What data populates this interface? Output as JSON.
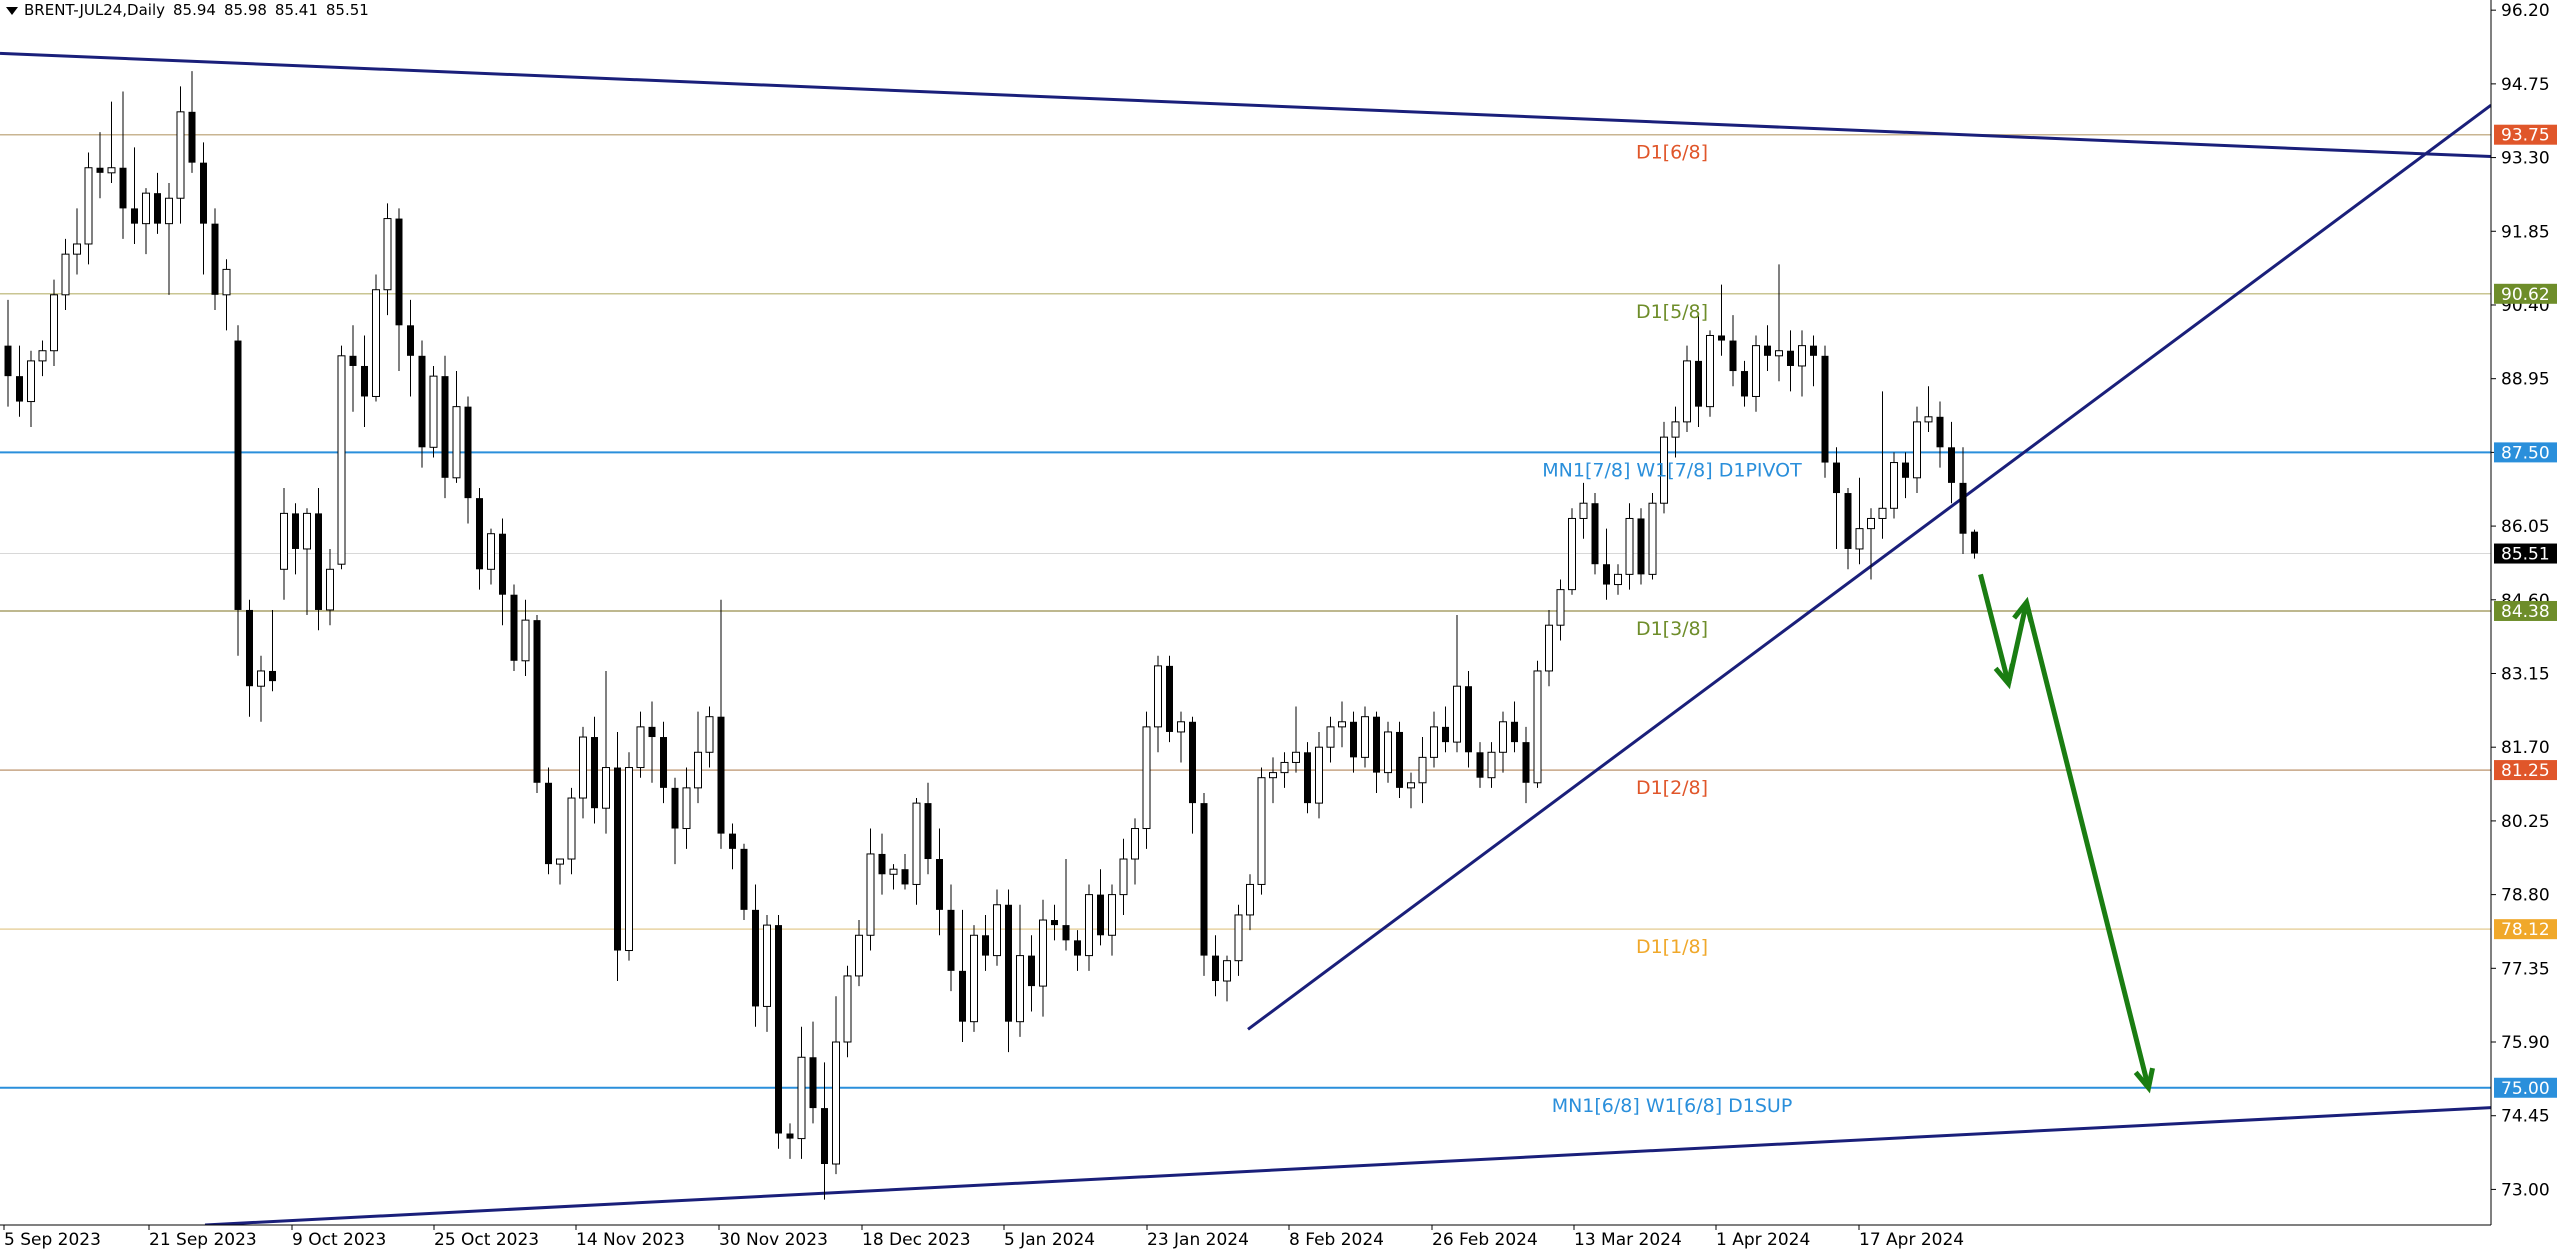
{
  "header": {
    "symbol": "BRENT-JUL24,Daily",
    "open": "85.94",
    "high": "85.98",
    "low": "85.41",
    "close": "85.51"
  },
  "chart_data": {
    "type": "candlestick",
    "symbol": "BRENT-JUL24",
    "timeframe": "Daily",
    "ylim": [
      72.3,
      96.4
    ],
    "y_ticks": [
      "96.20",
      "94.75",
      "93.30",
      "91.85",
      "90.40",
      "88.95",
      "87.50",
      "86.05",
      "84.60",
      "83.15",
      "81.70",
      "80.25",
      "78.80",
      "77.35",
      "75.90",
      "74.45",
      "73.00"
    ],
    "x_ticks": [
      "5 Sep 2023",
      "21 Sep 2023",
      "9 Oct 2023",
      "25 Oct 2023",
      "14 Nov 2023",
      "30 Nov 2023",
      "18 Dec 2023",
      "5 Jan 2024",
      "23 Jan 2024",
      "8 Feb 2024",
      "26 Feb 2024",
      "13 Mar 2024",
      "1 Apr 2024",
      "17 Apr 2024"
    ],
    "bars": [
      [
        89.6,
        90.5,
        88.4,
        89.0
      ],
      [
        89.0,
        89.6,
        88.2,
        88.5
      ],
      [
        88.5,
        89.5,
        88.0,
        89.3
      ],
      [
        89.3,
        89.7,
        89.0,
        89.5
      ],
      [
        89.5,
        90.9,
        89.2,
        90.6
      ],
      [
        90.6,
        91.7,
        90.3,
        91.4
      ],
      [
        91.4,
        92.3,
        91.0,
        91.6
      ],
      [
        91.6,
        93.4,
        91.2,
        93.1
      ],
      [
        93.1,
        93.8,
        92.5,
        93.0
      ],
      [
        93.0,
        94.4,
        92.8,
        93.1
      ],
      [
        93.1,
        94.6,
        91.7,
        92.3
      ],
      [
        92.3,
        93.5,
        91.6,
        92.0
      ],
      [
        92.0,
        92.7,
        91.4,
        92.6
      ],
      [
        92.6,
        93.0,
        91.8,
        92.0
      ],
      [
        92.0,
        92.8,
        90.6,
        92.5
      ],
      [
        92.5,
        94.7,
        92.0,
        94.2
      ],
      [
        94.2,
        95.0,
        93.0,
        93.2
      ],
      [
        93.2,
        93.6,
        91.0,
        92.0
      ],
      [
        92.0,
        92.3,
        90.3,
        90.6
      ],
      [
        90.6,
        91.3,
        89.9,
        91.1
      ],
      [
        89.7,
        90.0,
        83.5,
        84.4
      ],
      [
        84.4,
        84.6,
        82.3,
        82.9
      ],
      [
        82.9,
        83.5,
        82.2,
        83.2
      ],
      [
        83.2,
        84.4,
        82.8,
        83.0
      ],
      [
        85.2,
        86.8,
        84.6,
        86.3
      ],
      [
        86.3,
        86.5,
        85.1,
        85.6
      ],
      [
        85.6,
        86.4,
        84.3,
        86.3
      ],
      [
        86.3,
        86.8,
        84.0,
        84.4
      ],
      [
        84.4,
        85.6,
        84.1,
        85.2
      ],
      [
        85.3,
        89.6,
        85.2,
        89.4
      ],
      [
        89.4,
        90.0,
        88.3,
        89.2
      ],
      [
        89.2,
        89.8,
        88.0,
        88.6
      ],
      [
        88.6,
        91.0,
        88.5,
        90.7
      ],
      [
        90.7,
        92.4,
        90.2,
        92.1
      ],
      [
        92.1,
        92.3,
        89.1,
        90.0
      ],
      [
        90.0,
        90.5,
        88.6,
        89.4
      ],
      [
        89.4,
        89.7,
        87.2,
        87.6
      ],
      [
        87.6,
        89.2,
        87.4,
        89.0
      ],
      [
        89.0,
        89.4,
        86.6,
        87.0
      ],
      [
        87.0,
        89.1,
        86.9,
        88.4
      ],
      [
        88.4,
        88.6,
        86.1,
        86.6
      ],
      [
        86.6,
        86.8,
        84.8,
        85.2
      ],
      [
        85.2,
        86.0,
        84.9,
        85.9
      ],
      [
        85.9,
        86.2,
        84.1,
        84.7
      ],
      [
        84.7,
        84.9,
        83.2,
        83.4
      ],
      [
        83.4,
        84.6,
        83.1,
        84.2
      ],
      [
        84.2,
        84.3,
        80.8,
        81.0
      ],
      [
        81.0,
        81.3,
        79.2,
        79.4
      ],
      [
        79.4,
        79.5,
        79.0,
        79.5
      ],
      [
        79.5,
        80.9,
        79.2,
        80.7
      ],
      [
        80.7,
        82.1,
        80.3,
        81.9
      ],
      [
        81.9,
        82.3,
        80.2,
        80.5
      ],
      [
        80.5,
        83.2,
        80.0,
        81.3
      ],
      [
        81.3,
        82.0,
        77.1,
        77.7
      ],
      [
        77.7,
        81.6,
        77.5,
        81.3
      ],
      [
        81.3,
        82.4,
        81.1,
        82.1
      ],
      [
        82.1,
        82.6,
        81.0,
        81.9
      ],
      [
        81.9,
        82.2,
        80.6,
        80.9
      ],
      [
        80.9,
        81.1,
        79.4,
        80.1
      ],
      [
        80.1,
        81.3,
        79.7,
        80.9
      ],
      [
        80.9,
        82.4,
        80.6,
        81.6
      ],
      [
        81.6,
        82.5,
        81.3,
        82.3
      ],
      [
        82.3,
        84.6,
        79.7,
        80.0
      ],
      [
        80.0,
        80.2,
        79.3,
        79.7
      ],
      [
        79.7,
        79.8,
        78.3,
        78.5
      ],
      [
        78.5,
        79.0,
        76.2,
        76.6
      ],
      [
        76.6,
        78.4,
        76.1,
        78.2
      ],
      [
        78.2,
        78.4,
        73.8,
        74.1
      ],
      [
        74.1,
        74.3,
        73.6,
        74.0
      ],
      [
        74.0,
        76.2,
        73.6,
        75.6
      ],
      [
        75.6,
        76.3,
        74.3,
        74.6
      ],
      [
        74.6,
        75.5,
        72.8,
        73.5
      ],
      [
        73.5,
        76.8,
        73.3,
        75.9
      ],
      [
        75.9,
        77.4,
        75.6,
        77.2
      ],
      [
        77.2,
        78.3,
        77.0,
        78.0
      ],
      [
        78.0,
        80.1,
        77.7,
        79.6
      ],
      [
        79.6,
        80.0,
        78.8,
        79.2
      ],
      [
        79.2,
        79.4,
        78.9,
        79.3
      ],
      [
        79.3,
        79.6,
        78.9,
        79.0
      ],
      [
        79.0,
        80.7,
        78.6,
        80.6
      ],
      [
        80.6,
        81.0,
        79.2,
        79.5
      ],
      [
        79.5,
        80.1,
        78.0,
        78.5
      ],
      [
        78.5,
        79.0,
        76.9,
        77.3
      ],
      [
        77.3,
        78.5,
        75.9,
        76.3
      ],
      [
        76.3,
        78.2,
        76.1,
        78.0
      ],
      [
        78.0,
        78.4,
        77.3,
        77.6
      ],
      [
        77.6,
        78.9,
        77.4,
        78.6
      ],
      [
        78.6,
        78.9,
        75.7,
        76.3
      ],
      [
        76.3,
        78.6,
        76.0,
        77.6
      ],
      [
        77.6,
        78.0,
        76.5,
        77.0
      ],
      [
        77.0,
        78.7,
        76.4,
        78.3
      ],
      [
        78.3,
        78.6,
        77.9,
        78.2
      ],
      [
        78.2,
        79.5,
        77.7,
        77.9
      ],
      [
        77.9,
        78.1,
        77.3,
        77.6
      ],
      [
        77.6,
        79.0,
        77.3,
        78.8
      ],
      [
        78.8,
        79.3,
        77.8,
        78.0
      ],
      [
        78.0,
        79.0,
        77.6,
        78.8
      ],
      [
        78.8,
        79.9,
        78.4,
        79.5
      ],
      [
        79.5,
        80.3,
        79.0,
        80.1
      ],
      [
        80.1,
        82.4,
        79.7,
        82.1
      ],
      [
        82.1,
        83.5,
        81.6,
        83.3
      ],
      [
        83.3,
        83.5,
        81.8,
        82.0
      ],
      [
        82.0,
        82.4,
        81.4,
        82.2
      ],
      [
        82.2,
        82.3,
        80.0,
        80.6
      ],
      [
        80.6,
        80.8,
        77.2,
        77.6
      ],
      [
        77.6,
        78.0,
        76.8,
        77.1
      ],
      [
        77.1,
        77.6,
        76.7,
        77.5
      ],
      [
        77.5,
        78.6,
        77.2,
        78.4
      ],
      [
        78.4,
        79.2,
        78.1,
        79.0
      ],
      [
        79.0,
        81.3,
        78.8,
        81.1
      ],
      [
        81.1,
        81.5,
        80.6,
        81.2
      ],
      [
        81.2,
        81.6,
        80.9,
        81.4
      ],
      [
        81.4,
        82.5,
        81.2,
        81.6
      ],
      [
        81.6,
        81.8,
        80.4,
        80.6
      ],
      [
        80.6,
        82.0,
        80.3,
        81.7
      ],
      [
        81.7,
        82.3,
        81.4,
        82.1
      ],
      [
        82.1,
        82.6,
        81.7,
        82.2
      ],
      [
        82.2,
        82.4,
        81.2,
        81.5
      ],
      [
        81.5,
        82.5,
        81.3,
        82.3
      ],
      [
        82.3,
        82.4,
        80.8,
        81.2
      ],
      [
        81.2,
        82.2,
        81.0,
        82.0
      ],
      [
        82.0,
        82.2,
        80.7,
        80.9
      ],
      [
        80.9,
        81.2,
        80.5,
        81.0
      ],
      [
        81.0,
        81.9,
        80.6,
        81.5
      ],
      [
        81.5,
        82.4,
        81.3,
        82.1
      ],
      [
        82.1,
        82.5,
        81.6,
        81.8
      ],
      [
        81.8,
        84.3,
        81.6,
        82.9
      ],
      [
        82.9,
        83.2,
        81.3,
        81.6
      ],
      [
        81.6,
        81.8,
        80.9,
        81.1
      ],
      [
        81.1,
        81.8,
        80.9,
        81.6
      ],
      [
        81.6,
        82.4,
        81.2,
        82.2
      ],
      [
        82.2,
        82.6,
        81.6,
        81.8
      ],
      [
        81.8,
        82.1,
        80.6,
        81.0
      ],
      [
        81.0,
        83.4,
        80.9,
        83.2
      ],
      [
        83.2,
        84.4,
        82.9,
        84.1
      ],
      [
        84.1,
        85.0,
        83.8,
        84.8
      ],
      [
        84.8,
        86.4,
        84.7,
        86.2
      ],
      [
        86.2,
        86.9,
        85.8,
        86.5
      ],
      [
        86.5,
        86.7,
        85.1,
        85.3
      ],
      [
        85.3,
        86.0,
        84.6,
        84.9
      ],
      [
        84.9,
        85.3,
        84.7,
        85.1
      ],
      [
        85.1,
        86.5,
        84.8,
        86.2
      ],
      [
        86.2,
        86.4,
        84.9,
        85.1
      ],
      [
        85.1,
        86.7,
        85.0,
        86.5
      ],
      [
        86.5,
        88.1,
        86.3,
        87.8
      ],
      [
        87.8,
        88.4,
        87.4,
        88.1
      ],
      [
        88.1,
        89.6,
        87.9,
        89.3
      ],
      [
        89.3,
        90.2,
        88.0,
        88.4
      ],
      [
        88.4,
        89.9,
        88.2,
        89.8
      ],
      [
        89.8,
        90.8,
        89.4,
        89.7
      ],
      [
        89.7,
        90.2,
        88.8,
        89.1
      ],
      [
        89.1,
        89.3,
        88.4,
        88.6
      ],
      [
        88.6,
        89.8,
        88.3,
        89.6
      ],
      [
        89.6,
        90.0,
        89.1,
        89.4
      ],
      [
        89.4,
        91.2,
        88.9,
        89.5
      ],
      [
        89.5,
        89.9,
        88.7,
        89.2
      ],
      [
        89.2,
        89.9,
        88.6,
        89.6
      ],
      [
        89.6,
        89.8,
        88.8,
        89.4
      ],
      [
        89.4,
        89.6,
        87.0,
        87.3
      ],
      [
        87.3,
        87.6,
        85.6,
        86.7
      ],
      [
        86.7,
        86.8,
        85.2,
        85.6
      ],
      [
        85.6,
        87.0,
        85.3,
        86.0
      ],
      [
        86.0,
        86.4,
        85.0,
        86.2
      ],
      [
        86.2,
        88.7,
        85.8,
        86.4
      ],
      [
        86.4,
        87.5,
        86.2,
        87.3
      ],
      [
        87.3,
        87.5,
        86.6,
        87.0
      ],
      [
        87.0,
        88.4,
        86.7,
        88.1
      ],
      [
        88.1,
        88.8,
        87.9,
        88.2
      ],
      [
        88.2,
        88.5,
        87.2,
        87.6
      ],
      [
        87.6,
        88.1,
        86.5,
        86.9
      ],
      [
        86.9,
        87.6,
        85.5,
        85.9
      ],
      [
        85.94,
        85.98,
        85.41,
        85.51
      ]
    ],
    "levels": [
      {
        "price": 93.75,
        "label": "D1[6/8]",
        "tag": "93.75",
        "color": "#e0562a",
        "line": "#c9b592"
      },
      {
        "price": 90.62,
        "label": "D1[5/8]",
        "tag": "90.62",
        "color": "#6e8d2a",
        "line": "#c9c592"
      },
      {
        "price": 87.5,
        "label": "MN1[7/8] W1[7/8] D1PIVOT",
        "tag": "87.50",
        "color": "#2a8fdb",
        "line": "#2a8fdb"
      },
      {
        "price": 84.38,
        "label": "D1[3/8]",
        "tag": "84.38",
        "color": "#6e8d2a",
        "line": "#a9a06a"
      },
      {
        "price": 81.25,
        "label": "D1[2/8]",
        "tag": "81.25",
        "color": "#e0562a",
        "line": "#c6a584"
      },
      {
        "price": 78.12,
        "label": "D1[1/8]",
        "tag": "78.12",
        "color": "#f0a82a",
        "line": "#e8d3a2"
      },
      {
        "price": 75.0,
        "label": "MN1[6/8] W1[6/8] D1SUP",
        "tag": "75.00",
        "color": "#2a8fdb",
        "line": "#2a8fdb"
      }
    ],
    "current_price": {
      "price": 85.51,
      "tag": "85.51",
      "color": "#000000"
    },
    "trendline_color": "#1a1f7a",
    "forecast_arrow_color": "#1a7d12"
  }
}
